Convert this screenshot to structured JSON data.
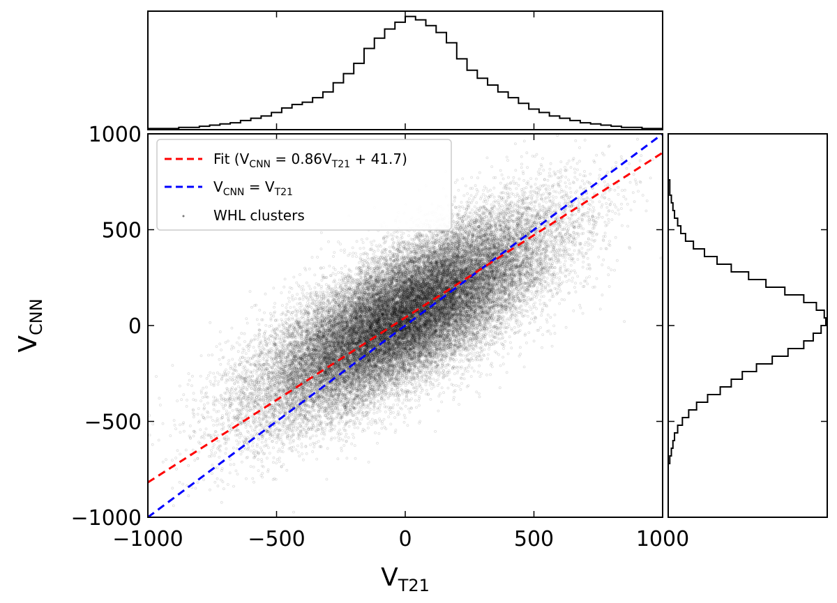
{
  "chart_data": [
    {
      "panel": "main",
      "type": "scatter",
      "xlabel_main": "V",
      "xlabel_sub": "T21",
      "ylabel_main": "V",
      "ylabel_sub": "CNN",
      "xlim": [
        -1000,
        1000
      ],
      "ylim": [
        -1000,
        1000
      ],
      "xticks": [
        "−1000",
        "−500",
        "0",
        "500",
        "1000"
      ],
      "yticks": [
        "−1000",
        "−500",
        "0",
        "500",
        "1000"
      ],
      "grid": false,
      "legend_position": "top-left",
      "legend": [
        {
          "label_prefix": "Fit (V",
          "label_sub1": "CNN",
          "label_mid": " = 0.86V",
          "label_sub2": "T21",
          "label_suffix": " + 41.7)",
          "style": "dashed",
          "color": "#ff0000"
        },
        {
          "label_prefix": "V",
          "label_sub1": "CNN",
          "label_mid": " = V",
          "label_sub2": "T21",
          "label_suffix": "",
          "style": "dashed",
          "color": "#0000ff"
        },
        {
          "label_prefix": "WHL clusters",
          "label_sub1": "",
          "label_mid": "",
          "label_sub2": "",
          "label_suffix": "",
          "style": "marker",
          "color": "#555555"
        }
      ],
      "series": [
        {
          "name": "WHL clusters",
          "kind": "points",
          "color": "#000000",
          "distribution": {
            "center": [
              0,
              50
            ],
            "sd_x": 280,
            "sd_y": 260,
            "correlation": 0.75,
            "n": 36000
          }
        },
        {
          "name": "Fit (VCNN = 0.86VT21 + 41.7)",
          "kind": "line",
          "color": "#ff0000",
          "slope": 0.86,
          "intercept": 41.7,
          "x": [
            -1000,
            1000
          ],
          "y": [
            -818.3,
            901.7
          ]
        },
        {
          "name": "VCNN = VT21",
          "kind": "line",
          "color": "#0000ff",
          "slope": 1,
          "intercept": 0,
          "x": [
            -1000,
            1000
          ],
          "y": [
            -1000,
            1000
          ]
        }
      ]
    },
    {
      "panel": "top-histogram",
      "type": "bar",
      "variable": "VT21",
      "bin_edges": [
        -1000,
        -960,
        -920,
        -880,
        -840,
        -800,
        -760,
        -720,
        -680,
        -640,
        -600,
        -560,
        -520,
        -480,
        -440,
        -400,
        -360,
        -320,
        -280,
        -240,
        -200,
        -160,
        -120,
        -80,
        -40,
        0,
        40,
        80,
        120,
        160,
        200,
        240,
        280,
        320,
        360,
        400,
        440,
        480,
        520,
        560,
        600,
        640,
        680,
        720,
        760,
        800,
        840,
        880,
        920,
        960,
        1000
      ],
      "counts_relative": [
        0.01,
        0.01,
        0.01,
        0.02,
        0.02,
        0.03,
        0.04,
        0.05,
        0.06,
        0.08,
        0.1,
        0.12,
        0.15,
        0.19,
        0.22,
        0.24,
        0.28,
        0.33,
        0.41,
        0.49,
        0.58,
        0.71,
        0.8,
        0.88,
        0.94,
        0.99,
        0.96,
        0.91,
        0.85,
        0.76,
        0.62,
        0.52,
        0.45,
        0.39,
        0.33,
        0.28,
        0.23,
        0.18,
        0.15,
        0.12,
        0.1,
        0.08,
        0.06,
        0.05,
        0.04,
        0.03,
        0.02,
        0.02,
        0.01,
        0.01
      ]
    },
    {
      "panel": "right-histogram",
      "type": "bar",
      "variable": "VCNN",
      "orientation": "horizontal",
      "bin_edges": [
        -1000,
        -960,
        -920,
        -880,
        -840,
        -800,
        -760,
        -720,
        -680,
        -640,
        -600,
        -560,
        -520,
        -480,
        -440,
        -400,
        -360,
        -320,
        -280,
        -240,
        -200,
        -160,
        -120,
        -80,
        -40,
        0,
        40,
        80,
        120,
        160,
        200,
        240,
        280,
        320,
        360,
        400,
        440,
        480,
        520,
        560,
        600,
        640,
        680,
        720,
        760,
        800,
        840,
        880,
        920,
        960,
        1000
      ],
      "counts_relative": [
        0,
        0,
        0,
        0,
        0,
        0,
        0,
        0.01,
        0.02,
        0.03,
        0.04,
        0.06,
        0.09,
        0.13,
        0.18,
        0.25,
        0.33,
        0.4,
        0.47,
        0.56,
        0.66,
        0.76,
        0.86,
        0.92,
        0.97,
        1.0,
        0.99,
        0.94,
        0.86,
        0.74,
        0.62,
        0.51,
        0.4,
        0.31,
        0.23,
        0.16,
        0.11,
        0.08,
        0.06,
        0.04,
        0.03,
        0.02,
        0.01,
        0.01,
        0,
        0,
        0,
        0,
        0,
        0
      ]
    }
  ]
}
